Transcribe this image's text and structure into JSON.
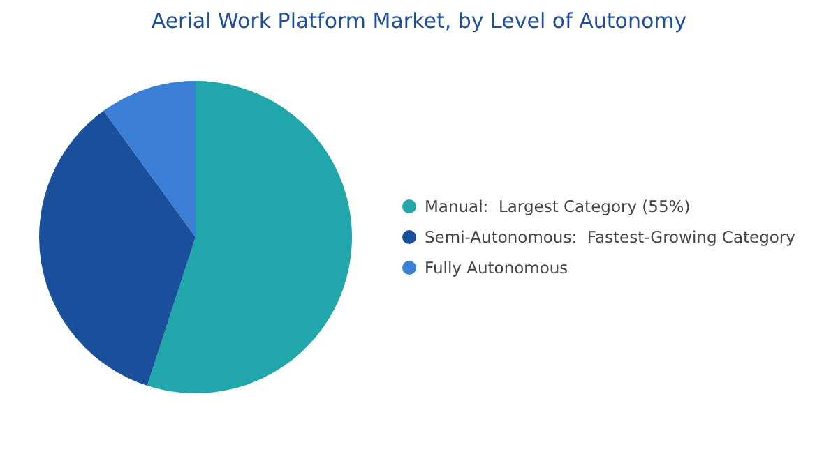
{
  "chart_data": {
    "type": "pie",
    "title": "Aerial Work Platform Market, by Level of Autonomy",
    "categories": [
      "Manual:  Largest Category (55%)",
      "Semi-Autonomous:  Fastest-Growing Category",
      "Fully Autonomous"
    ],
    "values": [
      55,
      35,
      10
    ],
    "colors": [
      "#20a6ab",
      "#1a4f9c",
      "#3a7fd5"
    ],
    "legend": "right"
  }
}
